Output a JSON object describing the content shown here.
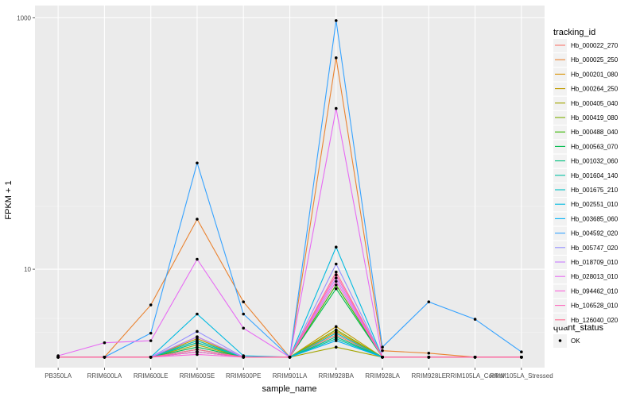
{
  "chart_data": {
    "type": "line",
    "xlabel": "sample_name",
    "ylabel": "FPKM + 1",
    "y_scale": "log10",
    "ylim": [
      1.65,
      1250
    ],
    "y_ticks": [
      {
        "value": 10,
        "label": "10"
      },
      {
        "value": 1000,
        "label": "1000"
      }
    ],
    "categories": [
      "PB350LA",
      "RRIM600LA",
      "RRIM600LE",
      "RRIM600SE",
      "RRIM600PE",
      "RRIM901LA",
      "RRIM928BA",
      "RRIM928LA",
      "RRIM928LE",
      "RRIM105LA_Control",
      "RRIM105LA_Stressed"
    ],
    "legend_title": "tracking_id",
    "series": [
      {
        "name": "Hb_000022_270",
        "color": "#F8766D",
        "values": [
          2,
          2,
          2,
          2.2,
          2,
          2,
          3.0,
          2,
          2,
          2,
          2
        ]
      },
      {
        "name": "Hb_000025_250",
        "color": "#EA8331",
        "values": [
          2,
          2,
          5.2,
          25,
          5.5,
          2,
          480,
          2.25,
          2.15,
          2,
          2
        ]
      },
      {
        "name": "Hb_000201_080",
        "color": "#D89000",
        "values": [
          2,
          2,
          2,
          2.7,
          2,
          2,
          3.2,
          2,
          2,
          2,
          2
        ]
      },
      {
        "name": "Hb_000264_250",
        "color": "#C09B00",
        "values": [
          2,
          2,
          2,
          2.8,
          2,
          2,
          3.5,
          2,
          2,
          2,
          2
        ]
      },
      {
        "name": "Hb_000405_040",
        "color": "#A3A500",
        "values": [
          2,
          2,
          2,
          2.5,
          2,
          2,
          2.4,
          2,
          2,
          2,
          2
        ]
      },
      {
        "name": "Hb_000419_080",
        "color": "#7CAE00",
        "values": [
          2,
          2,
          2,
          2.9,
          2,
          2,
          3.3,
          2,
          2,
          2,
          2
        ]
      },
      {
        "name": "Hb_000488_040",
        "color": "#39B600",
        "values": [
          2,
          2,
          2,
          2.6,
          2,
          2,
          7.5,
          2,
          2,
          2,
          2
        ]
      },
      {
        "name": "Hb_000563_070",
        "color": "#00BB4E",
        "values": [
          2,
          2,
          2,
          2.4,
          2,
          2,
          7.0,
          2,
          2,
          2,
          2
        ]
      },
      {
        "name": "Hb_001032_060",
        "color": "#00BF7D",
        "values": [
          2,
          2,
          2,
          2.3,
          2,
          2,
          2.9,
          2,
          2,
          2,
          2
        ]
      },
      {
        "name": "Hb_001604_140",
        "color": "#00C1A3",
        "values": [
          2,
          2,
          2,
          2.6,
          2,
          2,
          2.8,
          2,
          2,
          2,
          2
        ]
      },
      {
        "name": "Hb_001675_210",
        "color": "#00BFC4",
        "values": [
          2,
          2,
          2,
          2.7,
          2,
          2,
          3.1,
          2,
          2,
          2,
          2
        ]
      },
      {
        "name": "Hb_002551_010",
        "color": "#00BAE0",
        "values": [
          2,
          2,
          2,
          4.4,
          2.05,
          2,
          15,
          2,
          2,
          2,
          2
        ]
      },
      {
        "name": "Hb_003685_060",
        "color": "#00B0F6",
        "values": [
          2,
          2,
          2,
          2.2,
          2,
          2,
          2.7,
          2,
          2,
          2,
          2
        ]
      },
      {
        "name": "Hb_004592_020",
        "color": "#35A2FF",
        "values": [
          2,
          2,
          3.1,
          70,
          4.4,
          2,
          950,
          2.4,
          5.5,
          4.0,
          2.2
        ]
      },
      {
        "name": "Hb_005747_020",
        "color": "#9590FF",
        "values": [
          2,
          2,
          2,
          3.2,
          2,
          2,
          11,
          2,
          2,
          2,
          2
        ]
      },
      {
        "name": "Hb_018709_010",
        "color": "#C77CFF",
        "values": [
          2,
          2,
          2,
          2.9,
          2,
          2,
          8.5,
          2,
          2,
          2,
          2
        ]
      },
      {
        "name": "Hb_028013_010",
        "color": "#E76BF3",
        "values": [
          2.05,
          2.6,
          2.7,
          12,
          3.4,
          2,
          190,
          2,
          2,
          2,
          2
        ]
      },
      {
        "name": "Hb_094462_010",
        "color": "#FA62DB",
        "values": [
          2,
          2,
          2,
          2.1,
          2,
          2,
          8.0,
          2,
          2,
          2,
          2
        ]
      },
      {
        "name": "Hb_106528_010",
        "color": "#FF62BC",
        "values": [
          2,
          2,
          2,
          2.2,
          2,
          2,
          9.0,
          2,
          2,
          2,
          2
        ]
      },
      {
        "name": "Hb_126040_020",
        "color": "#FF6C91",
        "values": [
          2,
          2,
          2,
          2.3,
          2,
          2,
          9.5,
          2,
          2,
          2,
          2
        ]
      }
    ],
    "shape_legend": {
      "title": "quant_status",
      "items": [
        {
          "name": "OK"
        }
      ]
    },
    "grid": true
  }
}
